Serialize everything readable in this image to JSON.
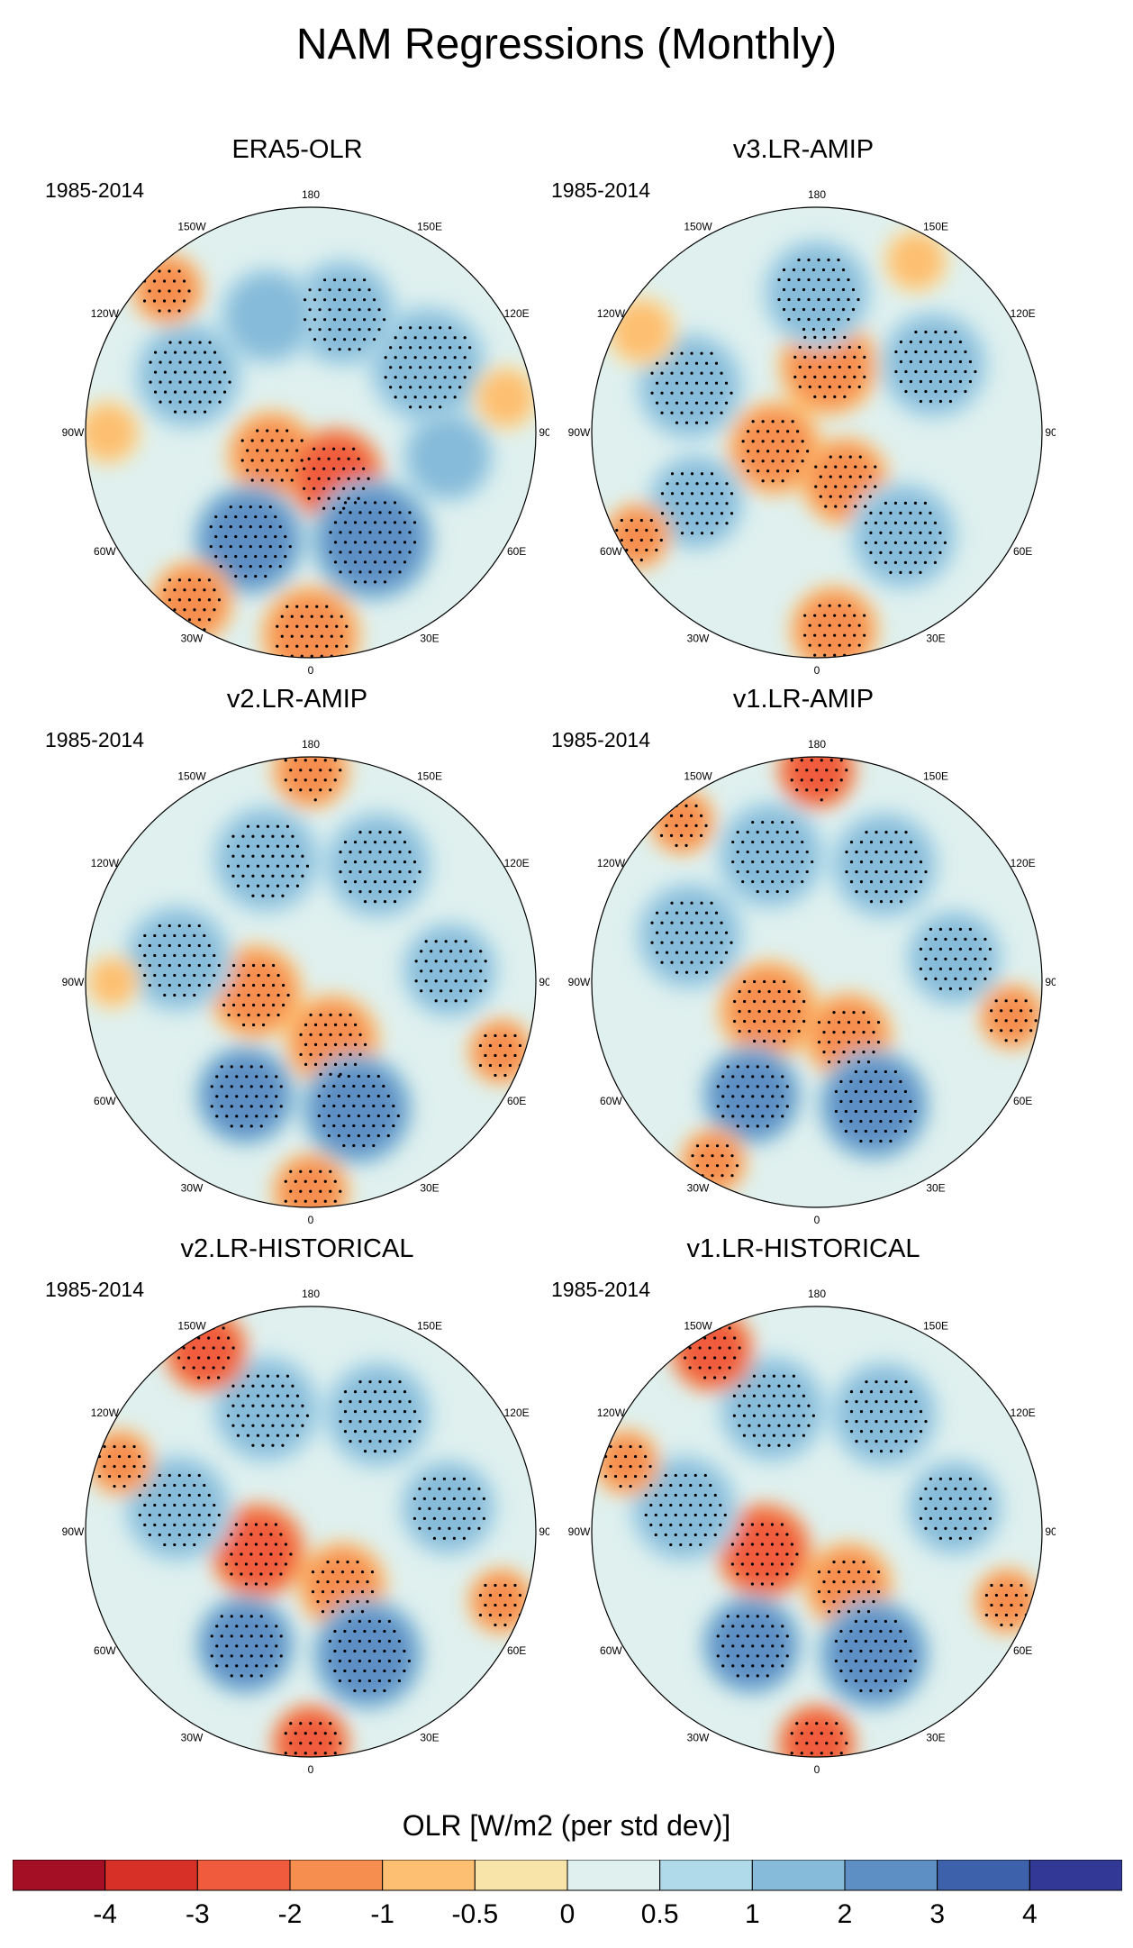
{
  "figure_title": "NAM Regressions (Monthly)",
  "chart_data": {
    "type": "heatmap",
    "title": "NAM Regressions (Monthly)",
    "projection": "north polar stereographic",
    "variable": "OLR",
    "period": "1985-2014",
    "longitude_labels": [
      "180",
      "150E",
      "120E",
      "90E",
      "60E",
      "30E",
      "0",
      "30W",
      "60W",
      "90W",
      "120W",
      "150W"
    ],
    "panels": [
      {
        "name": "ERA5-OLR",
        "period": "1985-2014",
        "anomalies": [
          {
            "lon": 300,
            "r": 0.2,
            "rad": 0.16,
            "v": -1.8
          },
          {
            "lon": 30,
            "r": 0.22,
            "rad": 0.17,
            "v": -2.4
          },
          {
            "lon": 120,
            "r": 0.6,
            "rad": 0.22,
            "v": 1.4
          },
          {
            "lon": 165,
            "r": 0.55,
            "rad": 0.2,
            "v": 1.2
          },
          {
            "lon": 200,
            "r": 0.55,
            "rad": 0.18,
            "v": 1.0
          },
          {
            "lon": 245,
            "r": 0.6,
            "rad": 0.2,
            "v": 1.2
          },
          {
            "lon": 80,
            "r": 0.62,
            "rad": 0.17,
            "v": 1.0
          },
          {
            "lon": 30,
            "r": 0.55,
            "rad": 0.22,
            "v": 2.4
          },
          {
            "lon": 330,
            "r": 0.55,
            "rad": 0.2,
            "v": 2.2
          },
          {
            "lon": 0,
            "r": 0.9,
            "rad": 0.18,
            "v": -2.0
          },
          {
            "lon": 325,
            "r": 0.92,
            "rad": 0.15,
            "v": -1.5
          },
          {
            "lon": 225,
            "r": 0.9,
            "rad": 0.13,
            "v": -1.4
          },
          {
            "lon": 270,
            "r": 0.9,
            "rad": 0.12,
            "v": -1.0
          },
          {
            "lon": 100,
            "r": 0.88,
            "rad": 0.12,
            "v": -0.8
          }
        ]
      },
      {
        "name": "v3.LR-AMIP",
        "period": "1985-2014",
        "anomalies": [
          {
            "lon": 290,
            "r": 0.2,
            "rad": 0.17,
            "v": -1.8
          },
          {
            "lon": 30,
            "r": 0.25,
            "rad": 0.16,
            "v": -1.6
          },
          {
            "lon": 170,
            "r": 0.3,
            "rad": 0.18,
            "v": -1.4
          },
          {
            "lon": 120,
            "r": 0.6,
            "rad": 0.2,
            "v": 1.5
          },
          {
            "lon": 180,
            "r": 0.62,
            "rad": 0.2,
            "v": 1.2
          },
          {
            "lon": 250,
            "r": 0.6,
            "rad": 0.2,
            "v": 1.2
          },
          {
            "lon": 300,
            "r": 0.62,
            "rad": 0.18,
            "v": 1.3
          },
          {
            "lon": 40,
            "r": 0.6,
            "rad": 0.2,
            "v": 1.8
          },
          {
            "lon": 5,
            "r": 0.88,
            "rad": 0.16,
            "v": -1.2
          },
          {
            "lon": 300,
            "r": 0.92,
            "rad": 0.12,
            "v": -1.3
          },
          {
            "lon": 150,
            "r": 0.88,
            "rad": 0.12,
            "v": -0.8
          },
          {
            "lon": 240,
            "r": 0.9,
            "rad": 0.13,
            "v": -1.0
          }
        ]
      },
      {
        "name": "v2.LR-AMIP",
        "period": "1985-2014",
        "anomalies": [
          {
            "lon": 280,
            "r": 0.25,
            "rad": 0.17,
            "v": -2.0
          },
          {
            "lon": 20,
            "r": 0.28,
            "rad": 0.17,
            "v": -1.8
          },
          {
            "lon": 150,
            "r": 0.6,
            "rad": 0.2,
            "v": 1.6
          },
          {
            "lon": 200,
            "r": 0.58,
            "rad": 0.2,
            "v": 1.4
          },
          {
            "lon": 260,
            "r": 0.6,
            "rad": 0.2,
            "v": 1.3
          },
          {
            "lon": 95,
            "r": 0.62,
            "rad": 0.18,
            "v": 1.2
          },
          {
            "lon": 20,
            "r": 0.6,
            "rad": 0.2,
            "v": 2.5
          },
          {
            "lon": 330,
            "r": 0.58,
            "rad": 0.18,
            "v": 2.0
          },
          {
            "lon": 180,
            "r": 0.94,
            "rad": 0.14,
            "v": -2.0
          },
          {
            "lon": 0,
            "r": 0.93,
            "rad": 0.14,
            "v": -1.6
          },
          {
            "lon": 70,
            "r": 0.9,
            "rad": 0.12,
            "v": -1.2
          },
          {
            "lon": 270,
            "r": 0.88,
            "rad": 0.1,
            "v": -0.6
          }
        ]
      },
      {
        "name": "v1.LR-AMIP",
        "period": "1985-2014",
        "anomalies": [
          {
            "lon": 300,
            "r": 0.25,
            "rad": 0.18,
            "v": -2.0
          },
          {
            "lon": 30,
            "r": 0.28,
            "rad": 0.16,
            "v": -1.6
          },
          {
            "lon": 150,
            "r": 0.6,
            "rad": 0.2,
            "v": 1.8
          },
          {
            "lon": 200,
            "r": 0.6,
            "rad": 0.2,
            "v": 1.5
          },
          {
            "lon": 250,
            "r": 0.6,
            "rad": 0.2,
            "v": 1.5
          },
          {
            "lon": 100,
            "r": 0.62,
            "rad": 0.18,
            "v": 1.4
          },
          {
            "lon": 25,
            "r": 0.6,
            "rad": 0.2,
            "v": 2.4
          },
          {
            "lon": 330,
            "r": 0.58,
            "rad": 0.18,
            "v": 2.0
          },
          {
            "lon": 180,
            "r": 0.94,
            "rad": 0.14,
            "v": -2.5
          },
          {
            "lon": 220,
            "r": 0.93,
            "rad": 0.12,
            "v": -2.0
          },
          {
            "lon": 80,
            "r": 0.88,
            "rad": 0.12,
            "v": -1.8
          },
          {
            "lon": 330,
            "r": 0.92,
            "rad": 0.12,
            "v": -1.2
          }
        ]
      },
      {
        "name": "v2.LR-HISTORICAL",
        "period": "1985-2014",
        "anomalies": [
          {
            "lon": 290,
            "r": 0.25,
            "rad": 0.17,
            "v": -2.2
          },
          {
            "lon": 30,
            "r": 0.28,
            "rad": 0.16,
            "v": -1.8
          },
          {
            "lon": 150,
            "r": 0.6,
            "rad": 0.2,
            "v": 1.8
          },
          {
            "lon": 200,
            "r": 0.58,
            "rad": 0.2,
            "v": 1.5
          },
          {
            "lon": 260,
            "r": 0.6,
            "rad": 0.2,
            "v": 1.4
          },
          {
            "lon": 100,
            "r": 0.62,
            "rad": 0.18,
            "v": 1.3
          },
          {
            "lon": 25,
            "r": 0.6,
            "rad": 0.2,
            "v": 2.4
          },
          {
            "lon": 330,
            "r": 0.58,
            "rad": 0.18,
            "v": 2.0
          },
          {
            "lon": 210,
            "r": 0.93,
            "rad": 0.15,
            "v": -2.8
          },
          {
            "lon": 0,
            "r": 0.94,
            "rad": 0.14,
            "v": -2.2
          },
          {
            "lon": 70,
            "r": 0.9,
            "rad": 0.12,
            "v": -1.6
          },
          {
            "lon": 250,
            "r": 0.9,
            "rad": 0.12,
            "v": -1.2
          }
        ]
      },
      {
        "name": "v1.LR-HISTORICAL",
        "period": "1985-2014",
        "anomalies": [
          {
            "lon": 290,
            "r": 0.25,
            "rad": 0.17,
            "v": -2.2
          },
          {
            "lon": 30,
            "r": 0.28,
            "rad": 0.16,
            "v": -1.8
          },
          {
            "lon": 150,
            "r": 0.6,
            "rad": 0.2,
            "v": 1.8
          },
          {
            "lon": 200,
            "r": 0.58,
            "rad": 0.2,
            "v": 1.5
          },
          {
            "lon": 260,
            "r": 0.6,
            "rad": 0.2,
            "v": 1.4
          },
          {
            "lon": 100,
            "r": 0.62,
            "rad": 0.18,
            "v": 1.3
          },
          {
            "lon": 25,
            "r": 0.6,
            "rad": 0.2,
            "v": 2.4
          },
          {
            "lon": 330,
            "r": 0.58,
            "rad": 0.18,
            "v": 2.0
          },
          {
            "lon": 210,
            "r": 0.93,
            "rad": 0.15,
            "v": -2.8
          },
          {
            "lon": 0,
            "r": 0.94,
            "rad": 0.14,
            "v": -2.2
          },
          {
            "lon": 70,
            "r": 0.9,
            "rad": 0.12,
            "v": -1.6
          },
          {
            "lon": 250,
            "r": 0.9,
            "rad": 0.12,
            "v": -1.2
          }
        ]
      }
    ],
    "colorbar": {
      "label": "OLR [W/m2 (per std dev)]",
      "levels": [
        "-4",
        "-3",
        "-2",
        "-1",
        "-0.5",
        "0",
        "0.5",
        "1",
        "2",
        "3",
        "4"
      ],
      "level_values": [
        -4,
        -3,
        -2,
        -1,
        -0.5,
        0,
        0.5,
        1,
        2,
        3,
        4
      ],
      "colors": [
        "#a50f26",
        "#d73027",
        "#f05b3e",
        "#f68e4f",
        "#fdbf71",
        "#f8e4a9",
        "#dff0ee",
        "#b0d9e9",
        "#86bbd9",
        "#5d8fc5",
        "#3d62ab",
        "#323896"
      ]
    }
  }
}
